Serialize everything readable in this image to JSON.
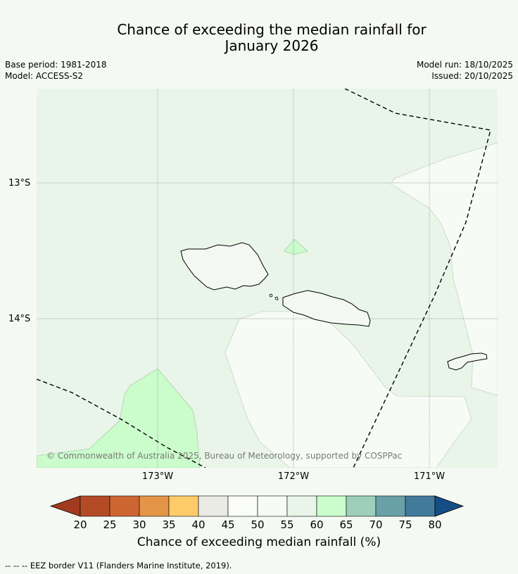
{
  "title": {
    "line1": "Chance of exceeding the median rainfall for",
    "line2": "January 2026"
  },
  "meta": {
    "base_period": "Base period: 1981-2018",
    "model": "Model: ACCESS-S2",
    "model_run": "Model run: 18/10/2025",
    "issued": "Issued: 20/10/2025"
  },
  "map": {
    "lat_labels": [
      "13°S",
      "14°S"
    ],
    "lon_labels": [
      "173°W",
      "172°W",
      "171°W"
    ],
    "copyright": "© Commonwealth of Australia 2025, Bureau of Meteorology, supported by COSPPac"
  },
  "colorbar": {
    "ticks": [
      "20",
      "25",
      "30",
      "35",
      "40",
      "45",
      "50",
      "55",
      "60",
      "65",
      "70",
      "75",
      "80"
    ],
    "colors": {
      "under": "#a23a1f",
      "20-25": "#b44b27",
      "25-30": "#cd6633",
      "30-35": "#e39446",
      "35-40": "#fdcb6a",
      "40-45": "#ebebe6",
      "45-50": "#fafcf9",
      "50-55": "#f7fbf5",
      "55-60": "#e9f5e8",
      "60-65": "#cbfccc",
      "65-70": "#9dcfba",
      "70-75": "#6aa1a6",
      "75-80": "#417a9a",
      "over": "#154d85"
    },
    "label": "Chance of exceeding median rainfall (%)"
  },
  "footnote": "--  --  -- EEZ border V11 (Flanders Marine Institute, 2019)."
}
